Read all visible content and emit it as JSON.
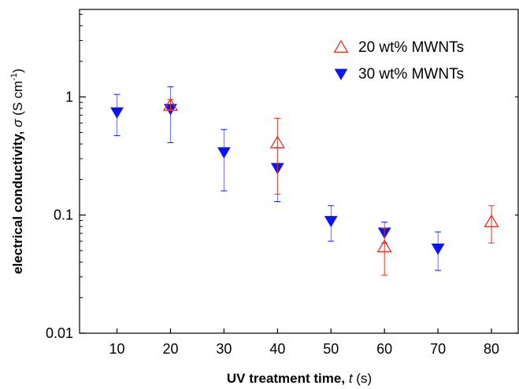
{
  "chart_data": {
    "type": "scatter",
    "x_axis": {
      "label_bold": "UV treatment time,",
      "label_var": "t",
      "label_unit": "(s)",
      "ticks": [
        10,
        20,
        30,
        40,
        50,
        60,
        70,
        80
      ],
      "range": [
        3,
        85
      ]
    },
    "y_axis": {
      "label_bold": "electrical conductivity,",
      "label_var": "σ",
      "label_unit": "(S cm",
      "label_exp": "-1",
      "label_close": ")",
      "scale": "log",
      "ticks": [
        0.01,
        0.1,
        1
      ],
      "tick_labels": [
        "0.01",
        "0.1",
        "1"
      ],
      "range": [
        0.01,
        5.5
      ]
    },
    "grid": false,
    "legend_position": "top-right",
    "series": [
      {
        "name": "20 wt% MWNTs",
        "marker": "triangle-up-open",
        "color": "#e8301d",
        "points": [
          {
            "x": 20,
            "y": 0.85,
            "err_low": 0.78,
            "err_high": 0.95
          },
          {
            "x": 40,
            "y": 0.41,
            "err_low": 0.15,
            "err_high": 0.66
          },
          {
            "x": 60,
            "y": 0.054,
            "err_low": 0.031,
            "err_high": 0.077
          },
          {
            "x": 80,
            "y": 0.088,
            "err_low": 0.058,
            "err_high": 0.12
          }
        ]
      },
      {
        "name": "30 wt% MWNTs",
        "marker": "triangle-down-filled",
        "color": "#0a14f5",
        "points": [
          {
            "x": 10,
            "y": 0.74,
            "err_low": 0.47,
            "err_high": 1.05
          },
          {
            "x": 20,
            "y": 0.79,
            "err_low": 0.41,
            "err_high": 1.22
          },
          {
            "x": 30,
            "y": 0.34,
            "err_low": 0.16,
            "err_high": 0.53
          },
          {
            "x": 40,
            "y": 0.25,
            "err_low": 0.13,
            "err_high": 0.37
          },
          {
            "x": 50,
            "y": 0.089,
            "err_low": 0.06,
            "err_high": 0.12
          },
          {
            "x": 60,
            "y": 0.071,
            "err_low": 0.058,
            "err_high": 0.087
          },
          {
            "x": 70,
            "y": 0.052,
            "err_low": 0.034,
            "err_high": 0.072
          }
        ]
      }
    ]
  }
}
